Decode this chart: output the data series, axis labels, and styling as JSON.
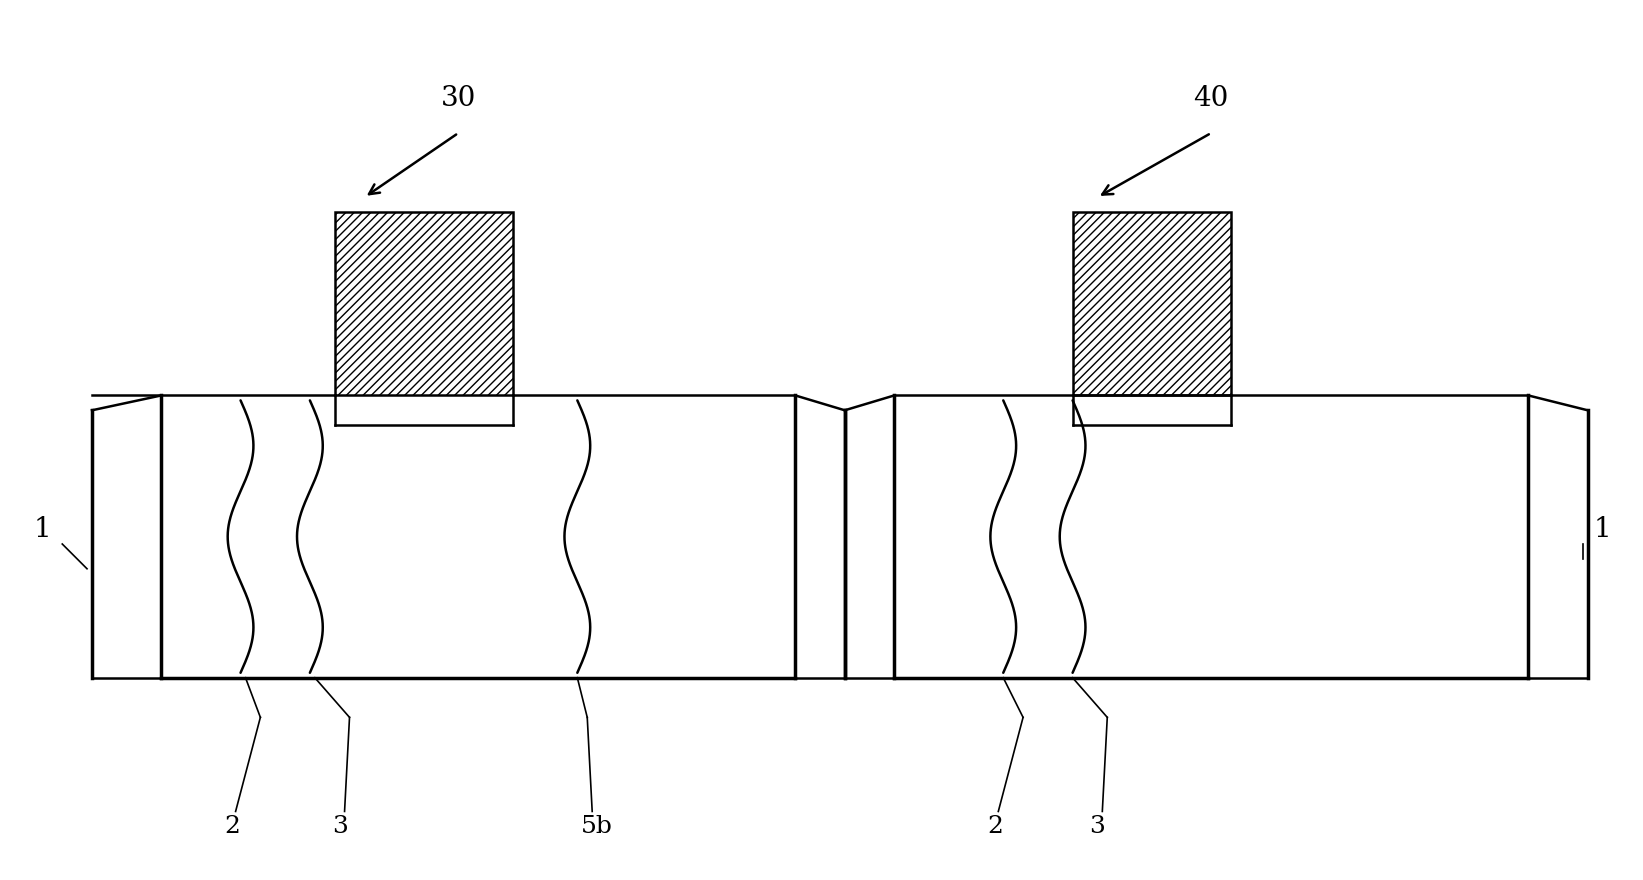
{
  "bg_color": "#ffffff",
  "line_color": "#000000",
  "fig_width": 16.43,
  "fig_height": 8.8,
  "label_30": "30",
  "label_40": "40",
  "label_1_left": "1",
  "label_1_right": "1",
  "label_2_left": "2",
  "label_3_left": "3",
  "label_5b": "5b",
  "label_2_right": "2",
  "label_3_right": "3",
  "lw": 1.8,
  "lw_thick": 2.5,
  "fs": 18
}
